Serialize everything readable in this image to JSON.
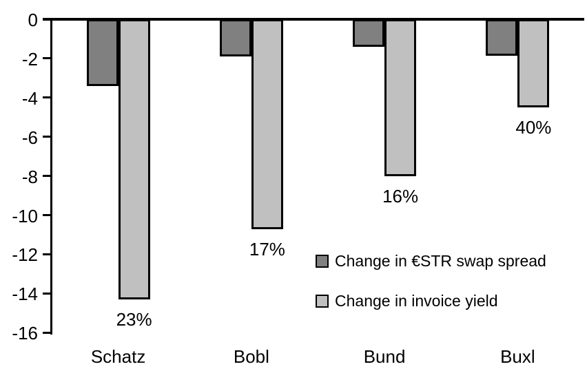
{
  "chart_data": {
    "type": "bar",
    "title": "",
    "xlabel": "",
    "ylabel": "",
    "categories": [
      "Schatz",
      "Bobl",
      "Bund",
      "Buxl"
    ],
    "series": [
      {
        "name": "Change in €STR swap spread",
        "color": "#808080",
        "border_color": "#000000",
        "values": [
          -3.3,
          -1.8,
          -1.3,
          -1.75
        ]
      },
      {
        "name": "Change in invoice yield",
        "color": "#C0C0C0",
        "border_color": "#000000",
        "values": [
          -14.2,
          -10.6,
          -7.9,
          -4.4
        ]
      }
    ],
    "data_labels": {
      "attached_to_series": "Change in invoice yield",
      "values": [
        "23%",
        "17%",
        "16%",
        "40%"
      ]
    },
    "yticks": [
      "0",
      "-2",
      "-4",
      "-6",
      "-8",
      "-10",
      "-12",
      "-14",
      "-16"
    ],
    "ytick_values": [
      0,
      -2,
      -4,
      -6,
      -8,
      -10,
      -12,
      -14,
      -16
    ],
    "ylim": [
      -16,
      0
    ],
    "grid": false,
    "legend_position": "inside-center-right",
    "axis_color": "#000000",
    "background_color": "#ffffff"
  },
  "legend": {
    "items": [
      {
        "label": "Change in €STR swap spread",
        "color": "#808080"
      },
      {
        "label": "Change in invoice yield",
        "color": "#C0C0C0"
      }
    ]
  }
}
